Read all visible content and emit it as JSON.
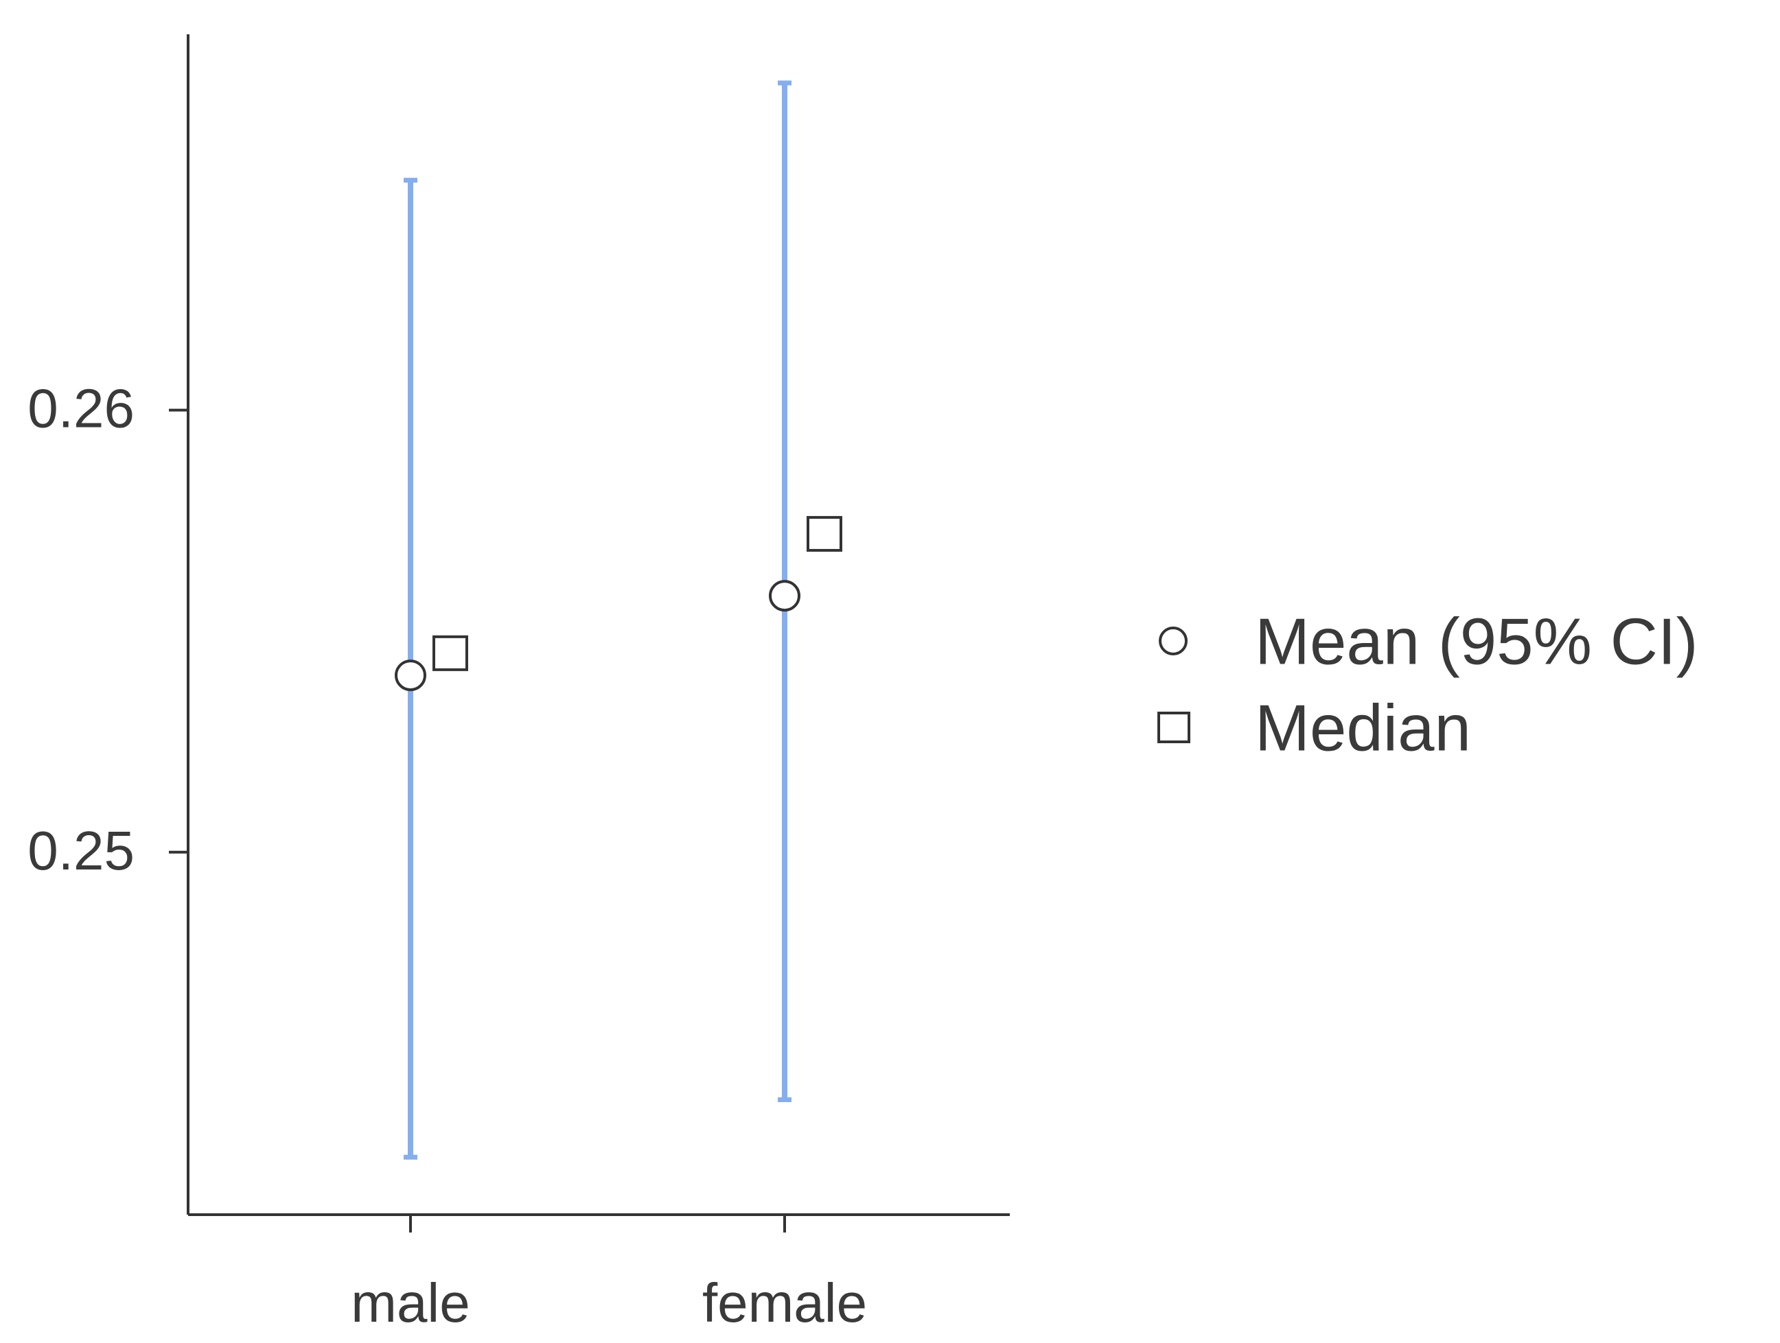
{
  "chart_data": {
    "type": "pointrange",
    "categories": [
      "male",
      "female"
    ],
    "series": [
      {
        "name": "Mean (95% CI)",
        "marker": "circle",
        "color": "#84aef0",
        "values": [
          0.254,
          0.2558
        ],
        "lower": [
          0.2431,
          0.2444
        ],
        "upper": [
          0.2652,
          0.2674
        ]
      },
      {
        "name": "Median",
        "marker": "square",
        "values": [
          0.2545,
          0.2572
        ]
      }
    ],
    "ylim": [
      0.2418,
      0.2685
    ],
    "yticks": [
      0.25,
      0.26
    ],
    "legend": "right"
  }
}
